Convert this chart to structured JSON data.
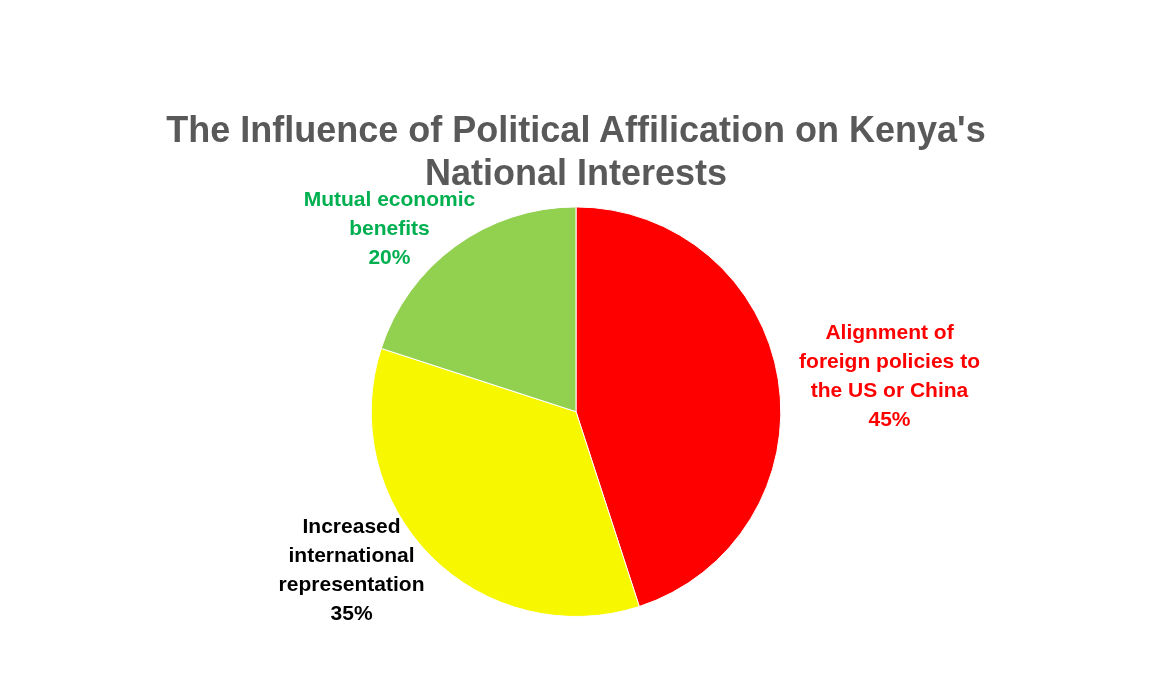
{
  "chart_data": {
    "type": "pie",
    "title": "The Influence of Political Affilication on Kenya's National Interests",
    "categories": [
      "Alignment of foreign policies to the US or China",
      "Increased international representation",
      "Mutual economic benefits"
    ],
    "values": [
      45,
      35,
      20
    ],
    "colors": [
      "#ff0000",
      "#f7f700",
      "#92d050"
    ],
    "value_labels": [
      "45%",
      "35%",
      "20%"
    ],
    "legend": false
  }
}
